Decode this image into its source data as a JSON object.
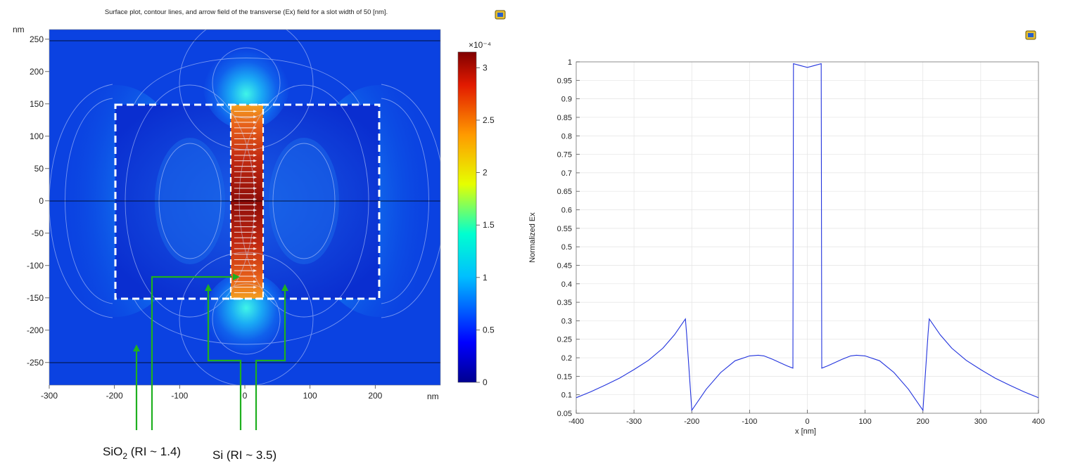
{
  "chart_data": [
    {
      "type": "heatmap",
      "title": "Surface plot, contour lines, and arrow field of the transverse (Ex) field for a slot width of 50 [nm].",
      "x_unit": "nm",
      "y_unit": "nm",
      "xlim": [
        -300,
        300
      ],
      "ylim": [
        -285,
        265
      ],
      "x_ticks": [
        -300,
        -200,
        -100,
        0,
        100,
        200
      ],
      "y_ticks": [
        250,
        200,
        150,
        100,
        50,
        0,
        -50,
        -100,
        -150,
        -200,
        -250
      ],
      "colorbar": {
        "exponent": "×10⁻⁴",
        "ticks": [
          0,
          0.5,
          1,
          1.5,
          2,
          2.5,
          3
        ],
        "range": [
          0,
          3.15
        ]
      },
      "regions": {
        "slot": {
          "x": [
            -25,
            25
          ],
          "y": [
            -150,
            150
          ]
        },
        "dashed_box": {
          "x": [
            -205,
            205
          ],
          "y": [
            -150,
            150
          ]
        }
      },
      "annotations": [
        {
          "label": "SiO",
          "subscript": "2",
          "suffix": " (RI ~ 1.4)"
        },
        {
          "label": "Si (RI ~ 3.5)"
        }
      ]
    },
    {
      "type": "line",
      "xlabel": "x [nm]",
      "ylabel": "Normalized Ex",
      "xlim": [
        -400,
        400
      ],
      "ylim": [
        0.05,
        1.0
      ],
      "x_ticks": [
        -400,
        -300,
        -200,
        -100,
        0,
        100,
        200,
        300,
        400
      ],
      "y_ticks": [
        1,
        0.95,
        0.9,
        0.85,
        0.8,
        0.75,
        0.7,
        0.65,
        0.6,
        0.55,
        0.5,
        0.45,
        0.4,
        0.35,
        0.3,
        0.25,
        0.2,
        0.15,
        0.1,
        0.05
      ],
      "grid": true,
      "series": [
        {
          "color": "#2233dd",
          "x": [
            -400,
            -375,
            -350,
            -325,
            -300,
            -275,
            -250,
            -230,
            -211,
            -209,
            -200,
            -175,
            -150,
            -125,
            -100,
            -85,
            -75,
            -60,
            -45,
            -35,
            -25,
            -24,
            -12,
            0,
            12,
            24,
            25,
            35,
            45,
            60,
            75,
            85,
            100,
            125,
            150,
            175,
            200,
            209,
            211,
            230,
            250,
            275,
            300,
            325,
            350,
            375,
            400
          ],
          "y": [
            0.092,
            0.108,
            0.126,
            0.145,
            0.168,
            0.193,
            0.226,
            0.262,
            0.305,
            0.265,
            0.058,
            0.115,
            0.16,
            0.192,
            0.205,
            0.207,
            0.205,
            0.196,
            0.185,
            0.178,
            0.172,
            0.995,
            0.99,
            0.985,
            0.99,
            0.995,
            0.172,
            0.178,
            0.185,
            0.196,
            0.205,
            0.207,
            0.205,
            0.192,
            0.16,
            0.115,
            0.058,
            0.265,
            0.305,
            0.262,
            0.226,
            0.193,
            0.168,
            0.145,
            0.126,
            0.108,
            0.092
          ]
        }
      ]
    }
  ]
}
